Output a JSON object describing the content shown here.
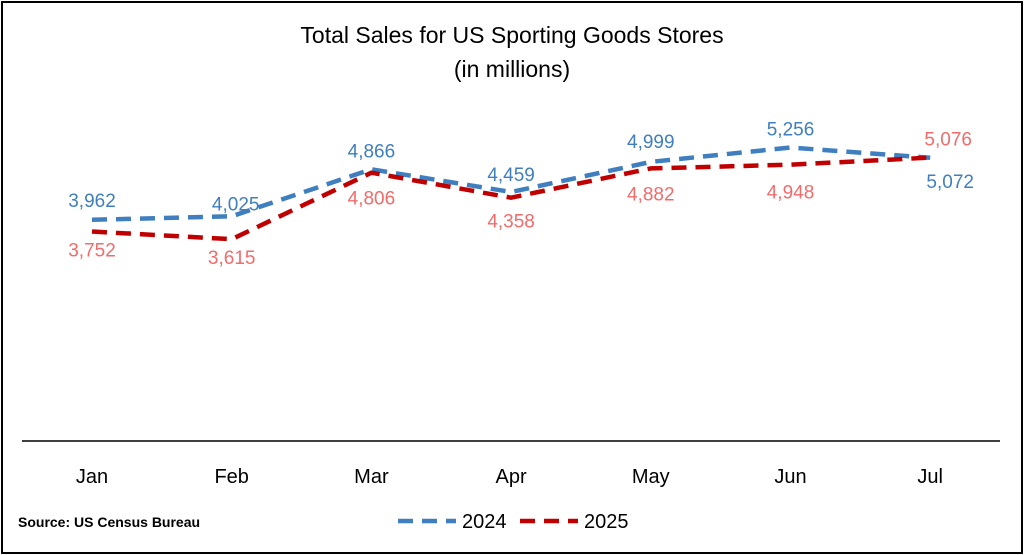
{
  "chart_data": {
    "type": "line",
    "title": "Total Sales for US Sporting Goods Stores",
    "subtitle": "(in millions)",
    "categories": [
      "Jan",
      "Feb",
      "Mar",
      "Apr",
      "May",
      "Jun",
      "Jul"
    ],
    "series": [
      {
        "name": "2024",
        "color": "#3f7fbf",
        "line_style": "dashed",
        "values": [
          3962,
          4025,
          4866,
          4459,
          4999,
          5256,
          5072
        ],
        "labels": [
          "3,962",
          "4,025",
          "4,866",
          "4,459",
          "4,999",
          "5,256",
          "5,072"
        ]
      },
      {
        "name": "2025",
        "color": "#c00000",
        "label_color": "#f26b6b",
        "line_style": "dashed",
        "values": [
          3752,
          3615,
          4806,
          4358,
          4882,
          4948,
          5076
        ],
        "labels": [
          "3,752",
          "3,615",
          "4,806",
          "4,358",
          "4,882",
          "4,948",
          "5,076"
        ]
      }
    ],
    "legend_position": "bottom",
    "y_axis_visible": false,
    "grid": false
  },
  "source": "Source: US Census Bureau"
}
